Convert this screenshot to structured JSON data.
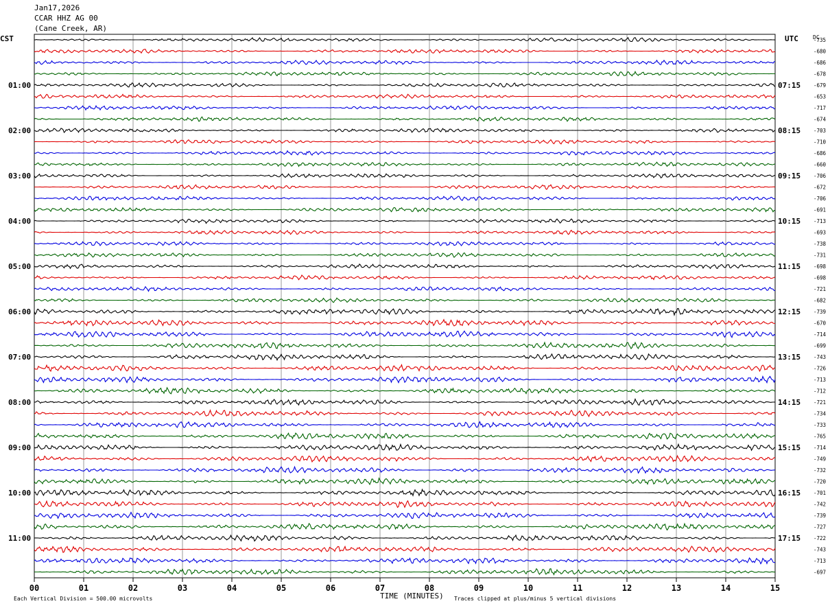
{
  "header": {
    "date": "Jan17,2026",
    "station": "CCAR HHZ AG 00",
    "location": "(Cane Creek, AR)"
  },
  "left_tz": "CST",
  "right_tz": "UTC",
  "dc_label": "DC",
  "footer": {
    "scale_note": "Each Vertical Division =  500.00 microvolts",
    "xlabel": "TIME (MINUTES)",
    "clip_note": "Traces clipped at plus/minus 5 vertical divisions"
  },
  "chart_data": {
    "type": "line",
    "title": "CCAR HHZ AG 00",
    "xlabel": "TIME (MINUTES)",
    "x_ticks": [
      "00",
      "01",
      "02",
      "03",
      "04",
      "05",
      "06",
      "07",
      "08",
      "09",
      "10",
      "11",
      "12",
      "13",
      "14",
      "15"
    ],
    "xlim": [
      0,
      15
    ],
    "trace_colors": [
      "#000000",
      "#e00000",
      "#0000e0",
      "#006400"
    ],
    "left_time_labels": [
      {
        "row": 4,
        "label": "01:00"
      },
      {
        "row": 8,
        "label": "02:00"
      },
      {
        "row": 12,
        "label": "03:00"
      },
      {
        "row": 16,
        "label": "04:00"
      },
      {
        "row": 20,
        "label": "05:00"
      },
      {
        "row": 24,
        "label": "06:00"
      },
      {
        "row": 28,
        "label": "07:00"
      },
      {
        "row": 32,
        "label": "08:00"
      },
      {
        "row": 36,
        "label": "09:00"
      },
      {
        "row": 40,
        "label": "10:00"
      },
      {
        "row": 44,
        "label": "11:00"
      }
    ],
    "right_time_labels": [
      {
        "row": 4,
        "label": "07:15"
      },
      {
        "row": 8,
        "label": "08:15"
      },
      {
        "row": 12,
        "label": "09:15"
      },
      {
        "row": 16,
        "label": "10:15"
      },
      {
        "row": 20,
        "label": "11:15"
      },
      {
        "row": 24,
        "label": "12:15"
      },
      {
        "row": 28,
        "label": "13:15"
      },
      {
        "row": 32,
        "label": "14:15"
      },
      {
        "row": 36,
        "label": "15:15"
      },
      {
        "row": 40,
        "label": "16:15"
      },
      {
        "row": 44,
        "label": "17:15"
      }
    ],
    "dc_offsets": [
      "-735",
      "-680",
      "-686",
      "-678",
      "-679",
      "-653",
      "-717",
      "-674",
      "-703",
      "-710",
      "-686",
      "-660",
      "-706",
      "-672",
      "-706",
      "-691",
      "-713",
      "-693",
      "-738",
      "-731",
      "-698",
      "-698",
      "-721",
      "-682",
      "-739",
      "-670",
      "-714",
      "-699",
      "-743",
      "-726",
      "-713",
      "-712",
      "-721",
      "-734",
      "-733",
      "-765",
      "-714",
      "-749",
      "-732",
      "-720",
      "-701",
      "-742",
      "-739",
      "-727",
      "-722",
      "-743",
      "-713",
      "-697"
    ]
  }
}
